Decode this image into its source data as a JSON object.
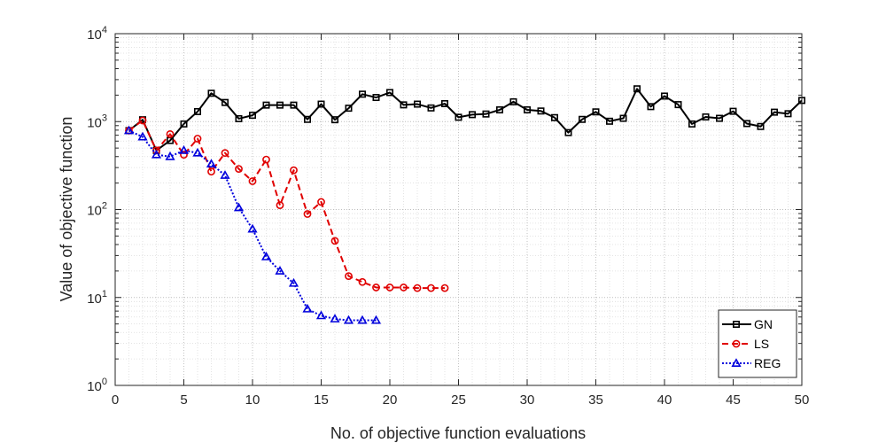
{
  "chart_data": {
    "type": "line",
    "title": "",
    "xlabel": "No. of objective function evaluations",
    "ylabel": "Value of objective function",
    "xlim": [
      0,
      50
    ],
    "ylim": [
      1,
      10000
    ],
    "yscale": "log",
    "grid": true,
    "minor_grid": true,
    "legend_position": "bottom-right",
    "x_ticks": [
      "0",
      "5",
      "10",
      "15",
      "20",
      "25",
      "30",
      "35",
      "40",
      "45",
      "50"
    ],
    "x_tick_values": [
      0,
      5,
      10,
      15,
      20,
      25,
      30,
      35,
      40,
      45,
      50
    ],
    "y_ticks": [
      {
        "base": "10",
        "exp": "0",
        "value": 1
      },
      {
        "base": "10",
        "exp": "1",
        "value": 10
      },
      {
        "base": "10",
        "exp": "2",
        "value": 100
      },
      {
        "base": "10",
        "exp": "3",
        "value": 1000
      },
      {
        "base": "10",
        "exp": "4",
        "value": 10000
      }
    ],
    "series": [
      {
        "name": "GN",
        "color": "#000000",
        "line_style": "solid",
        "marker": "square",
        "x": [
          1,
          2,
          3,
          4,
          5,
          6,
          7,
          8,
          9,
          10,
          11,
          12,
          13,
          14,
          15,
          16,
          17,
          18,
          19,
          20,
          21,
          22,
          23,
          24,
          25,
          26,
          27,
          28,
          29,
          30,
          31,
          32,
          33,
          34,
          35,
          36,
          37,
          38,
          39,
          40,
          41,
          42,
          43,
          44,
          45,
          46,
          47,
          48,
          49,
          50
        ],
        "values": [
          790,
          1050,
          470,
          610,
          940,
          1300,
          2100,
          1650,
          1080,
          1180,
          1540,
          1540,
          1540,
          1060,
          1580,
          1050,
          1420,
          2050,
          1880,
          2140,
          1550,
          1580,
          1430,
          1600,
          1120,
          1200,
          1220,
          1360,
          1680,
          1360,
          1320,
          1110,
          750,
          1060,
          1290,
          1010,
          1090,
          2360,
          1480,
          1950,
          1560,
          940,
          1130,
          1090,
          1310,
          950,
          880,
          1280,
          1230,
          1740
        ]
      },
      {
        "name": "LS",
        "color": "#e00000",
        "line_style": "dashed",
        "marker": "circle",
        "x": [
          1,
          2,
          3,
          4,
          5,
          6,
          7,
          8,
          9,
          10,
          11,
          12,
          13,
          14,
          15,
          16,
          17,
          18,
          19,
          20,
          21,
          22,
          23,
          24
        ],
        "values": [
          790,
          1030,
          470,
          720,
          420,
          640,
          270,
          440,
          290,
          210,
          370,
          112,
          280,
          89,
          122,
          44,
          17.5,
          15,
          13,
          13,
          13,
          12.8,
          12.8,
          12.8
        ]
      },
      {
        "name": "REG",
        "color": "#0000dd",
        "line_style": "dotted",
        "marker": "triangle",
        "x": [
          1,
          2,
          3,
          4,
          5,
          6,
          7,
          8,
          9,
          10,
          11,
          12,
          13,
          14,
          15,
          16,
          17,
          18,
          19
        ],
        "values": [
          790,
          670,
          420,
          400,
          470,
          440,
          330,
          245,
          105,
          60,
          29,
          20,
          14.5,
          7.4,
          6.2,
          5.7,
          5.5,
          5.5,
          5.5
        ]
      }
    ]
  }
}
